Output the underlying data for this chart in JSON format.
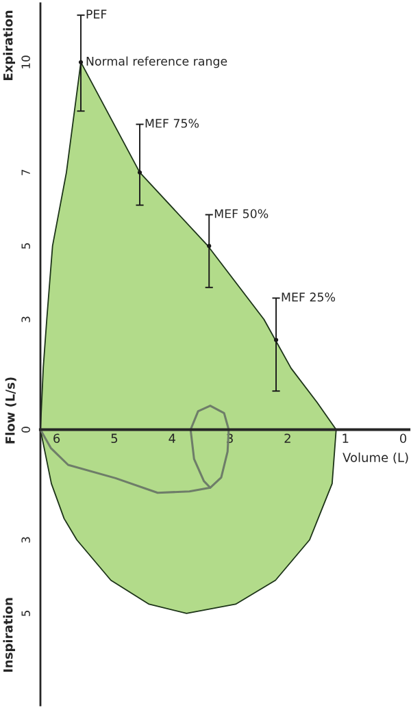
{
  "chart_data": {
    "type": "area",
    "xlabel": "Volume (L)",
    "ylabel": "Flow (L/s)",
    "xlim": [
      6.28,
      -0.1
    ],
    "ylim": [
      -7.5,
      11.6
    ],
    "xticks": [
      6,
      5,
      4,
      3,
      2,
      1,
      0
    ],
    "yticks": [
      10,
      7,
      5,
      3,
      0,
      {
        "value": -3,
        "label": "3"
      },
      {
        "value": -5,
        "label": "5"
      }
    ],
    "grid": false,
    "series": [
      {
        "color": "#b2db8a",
        "x": [
          6.28,
          6.23,
          6.17,
          6.07,
          5.83,
          5.58,
          4.56,
          3.38,
          2.41,
          1.94,
          1.49,
          1.16
        ],
        "values": [
          0,
          1.7,
          3,
          5,
          7,
          10,
          7,
          5,
          3,
          1.67,
          0.74,
          0
        ]
      },
      {
        "color": "#b2db8a",
        "x": [
          6.28,
          6.09,
          5.87,
          5.65,
          5.06,
          4.4,
          3.75,
          2.9,
          2.21,
          1.62,
          1.23,
          1.16
        ],
        "values": [
          0,
          -1.47,
          -2.42,
          -3,
          -4.1,
          -4.75,
          -5.0,
          -4.75,
          -4.1,
          -3,
          -1.47,
          0
        ]
      },
      {
        "type": "line",
        "color": "#6e7d69",
        "x": [
          6.28,
          6.1,
          5.8,
          4.98,
          4.25,
          3.7,
          3.34,
          3.15,
          3.04,
          3.02,
          3.1,
          3.34,
          3.55,
          3.68,
          3.62,
          3.45,
          3.34
        ],
        "values": [
          0,
          -0.5,
          -0.96,
          -1.32,
          -1.72,
          -1.68,
          -1.58,
          -1.3,
          -0.6,
          0,
          0.45,
          0.65,
          0.5,
          0,
          -0.8,
          -1.4,
          -1.58
        ]
      },
      {
        "type": "scatter",
        "marker": "circle",
        "color": "#1a1a1a",
        "x": [
          5.58,
          4.56,
          3.36,
          2.2
        ],
        "values": [
          10,
          7,
          5,
          2.44
        ],
        "errors": [
          [
            8.67,
            11.28
          ],
          [
            6.11,
            8.31
          ],
          [
            3.87,
            5.85
          ],
          [
            1.05,
            3.58
          ]
        ]
      }
    ],
    "annotations": [
      {
        "text": "PEF",
        "x": 5.58,
        "y": 11.28
      },
      {
        "text": "Normal reference range",
        "x": 5.58,
        "y": 10
      },
      {
        "text": "MEF 75%",
        "x": 4.56,
        "y": 8.31
      },
      {
        "text": "MEF 50%",
        "x": 3.36,
        "y": 5.85
      },
      {
        "text": "MEF 25%",
        "x": 2.2,
        "y": 3.58
      },
      "Expiration",
      "Inspiration"
    ]
  }
}
